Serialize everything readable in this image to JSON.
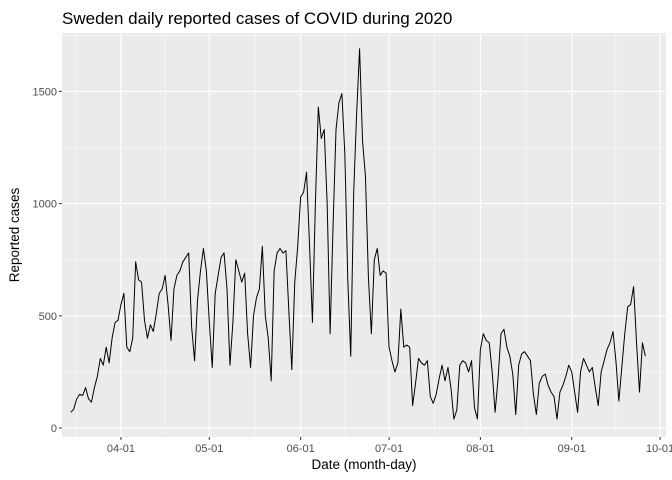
{
  "chart_data": {
    "type": "line",
    "title": "Sweden daily reported cases of COVID during 2020",
    "xlabel": "Date (month-day)",
    "ylabel": "Reported cases",
    "x_ticks": [
      "04-01",
      "05-01",
      "06-01",
      "07-01",
      "08-01",
      "09-01",
      "10-01"
    ],
    "y_ticks": [
      0,
      500,
      1000,
      1500
    ],
    "xlim": [
      "2020-03-12",
      "2020-10-03"
    ],
    "ylim": [
      -40,
      1760
    ],
    "grid": true,
    "colors": {
      "panel": "#ebebeb",
      "grid": "#ffffff",
      "line": "#000000"
    },
    "series": [
      {
        "x_start": "2020-03-15",
        "values": [
          70,
          85,
          130,
          150,
          145,
          180,
          130,
          115,
          180,
          230,
          310,
          280,
          360,
          290,
          400,
          470,
          480,
          550,
          600,
          360,
          340,
          400,
          740,
          660,
          650,
          480,
          400,
          460,
          430,
          510,
          600,
          620,
          680,
          550,
          390,
          620,
          680,
          700,
          740,
          760,
          780,
          450,
          300,
          570,
          700,
          800,
          700,
          470,
          270,
          600,
          680,
          760,
          780,
          620,
          280,
          470,
          750,
          700,
          650,
          690,
          420,
          270,
          500,
          580,
          620,
          810,
          500,
          400,
          210,
          700,
          780,
          800,
          780,
          790,
          520,
          260,
          650,
          810,
          1030,
          1050,
          1140,
          820,
          470,
          1000,
          1430,
          1290,
          1330,
          1000,
          420,
          900,
          1330,
          1450,
          1490,
          1220,
          660,
          320,
          1050,
          1400,
          1690,
          1280,
          1120,
          670,
          420,
          750,
          800,
          680,
          700,
          690,
          360,
          300,
          250,
          290,
          530,
          360,
          370,
          360,
          100,
          200,
          310,
          290,
          280,
          300,
          140,
          110,
          150,
          220,
          280,
          210,
          270,
          180,
          40,
          80,
          280,
          300,
          290,
          250,
          300,
          90,
          40,
          350,
          420,
          390,
          380,
          250,
          70,
          220,
          420,
          440,
          360,
          320,
          240,
          60,
          280,
          330,
          340,
          320,
          300,
          150,
          60,
          200,
          230,
          240,
          190,
          160,
          140,
          40,
          160,
          190,
          230,
          280,
          250,
          160,
          70,
          250,
          310,
          280,
          250,
          270,
          180,
          100,
          250,
          300,
          350,
          380,
          430,
          300,
          120,
          270,
          420,
          540,
          550,
          630,
          380,
          160,
          380,
          320
        ]
      }
    ]
  }
}
